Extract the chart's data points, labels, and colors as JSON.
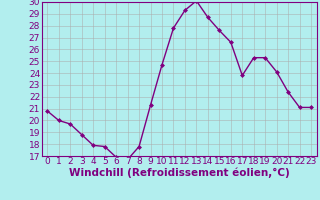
{
  "x": [
    0,
    1,
    2,
    3,
    4,
    5,
    6,
    7,
    8,
    9,
    10,
    11,
    12,
    13,
    14,
    15,
    16,
    17,
    18,
    19,
    20,
    21,
    22,
    23
  ],
  "y": [
    20.8,
    20.0,
    19.7,
    18.8,
    17.9,
    17.8,
    16.9,
    16.7,
    17.8,
    21.3,
    24.7,
    27.8,
    29.3,
    30.1,
    28.7,
    27.6,
    26.6,
    23.8,
    25.3,
    25.3,
    24.1,
    22.4,
    21.1,
    21.1
  ],
  "line_color": "#800080",
  "marker": "D",
  "marker_size": 2.0,
  "bg_color": "#b2eeee",
  "grid_color": "#aaaaaa",
  "xlabel": "Windchill (Refroidissement éolien,°C)",
  "ylim": [
    17,
    30
  ],
  "xlim_min": -0.5,
  "xlim_max": 23.5,
  "yticks": [
    17,
    18,
    19,
    20,
    21,
    22,
    23,
    24,
    25,
    26,
    27,
    28,
    29,
    30
  ],
  "xticks": [
    0,
    1,
    2,
    3,
    4,
    5,
    6,
    7,
    8,
    9,
    10,
    11,
    12,
    13,
    14,
    15,
    16,
    17,
    18,
    19,
    20,
    21,
    22,
    23
  ],
  "xlabel_fontsize": 7.5,
  "tick_fontsize": 6.5,
  "line_width": 1.0,
  "spine_color": "#800080"
}
